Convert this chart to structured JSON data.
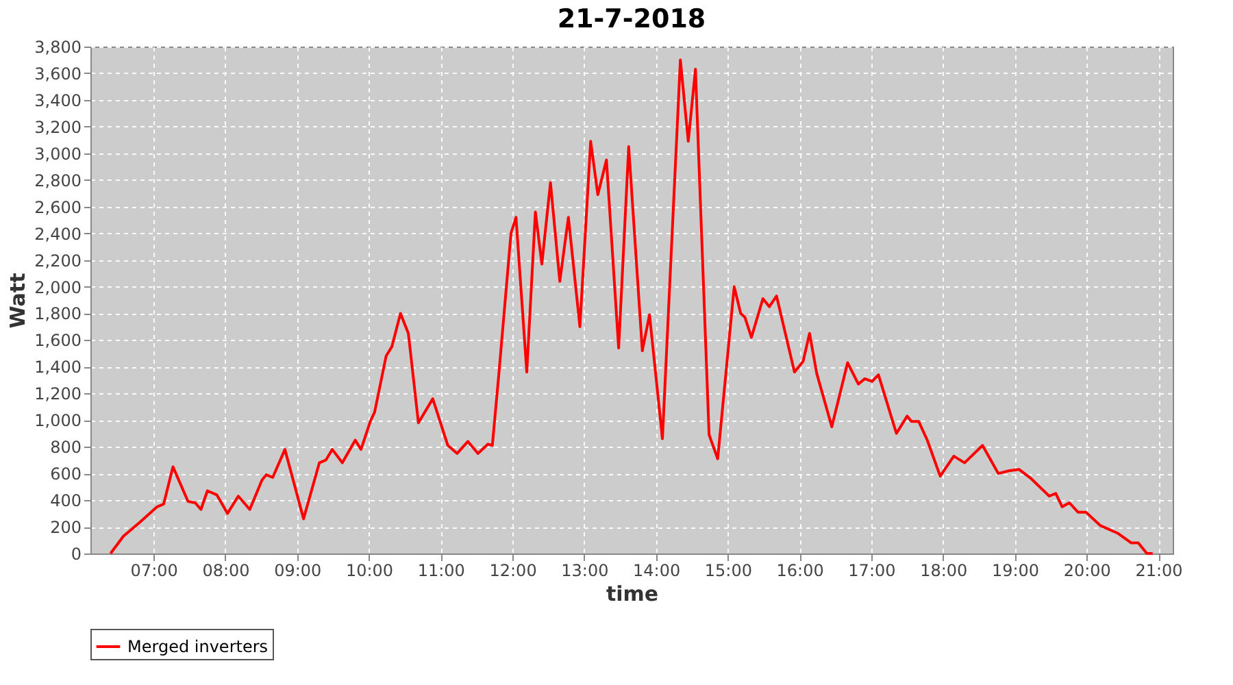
{
  "chart_data": {
    "type": "line",
    "title": "21-7-2018",
    "xlabel": "time",
    "ylabel": "Watt",
    "xlim": [
      6.12,
      21.2
    ],
    "xticks": [
      {
        "value": 7,
        "label": "07:00"
      },
      {
        "value": 8,
        "label": "08:00"
      },
      {
        "value": 9,
        "label": "09:00"
      },
      {
        "value": 10,
        "label": "10:00"
      },
      {
        "value": 11,
        "label": "11:00"
      },
      {
        "value": 12,
        "label": "12:00"
      },
      {
        "value": 13,
        "label": "13:00"
      },
      {
        "value": 14,
        "label": "14:00"
      },
      {
        "value": 15,
        "label": "15:00"
      },
      {
        "value": 16,
        "label": "16:00"
      },
      {
        "value": 17,
        "label": "17:00"
      },
      {
        "value": 18,
        "label": "18:00"
      },
      {
        "value": 19,
        "label": "19:00"
      },
      {
        "value": 20,
        "label": "20:00"
      },
      {
        "value": 21,
        "label": "21:00"
      }
    ],
    "ylim": [
      0,
      3800
    ],
    "yticks": [
      0,
      200,
      400,
      600,
      800,
      {
        "value": 1000,
        "label": "1,000"
      },
      {
        "value": 1200,
        "label": "1,200"
      },
      {
        "value": 1400,
        "label": "1,400"
      },
      {
        "value": 1600,
        "label": "1,600"
      },
      {
        "value": 1800,
        "label": "1,800"
      },
      {
        "value": 2000,
        "label": "2,000"
      },
      {
        "value": 2200,
        "label": "2,200"
      },
      {
        "value": 2400,
        "label": "2,400"
      },
      {
        "value": 2600,
        "label": "2,600"
      },
      {
        "value": 2800,
        "label": "2,800"
      },
      {
        "value": 3000,
        "label": "3,000"
      },
      {
        "value": 3200,
        "label": "3,200"
      },
      {
        "value": 3400,
        "label": "3,400"
      },
      {
        "value": 3600,
        "label": "3,600"
      },
      {
        "value": 3800,
        "label": "3,800"
      }
    ],
    "grid": true,
    "legend": "bottom",
    "marker": "none",
    "line_style": "solid",
    "series": [
      {
        "name": "Merged inverters",
        "color": "#ff0000",
        "x": [
          6.4,
          6.58,
          6.8,
          7.05,
          7.14,
          7.27,
          7.48,
          7.58,
          7.66,
          7.75,
          7.88,
          8.03,
          8.18,
          8.34,
          8.51,
          8.57,
          8.66,
          8.83,
          9.09,
          9.31,
          9.4,
          9.49,
          9.63,
          9.81,
          9.89,
          10.02,
          10.08,
          10.24,
          10.32,
          10.44,
          10.55,
          10.69,
          10.89,
          11.1,
          11.23,
          11.38,
          11.52,
          11.66,
          11.72,
          11.81,
          11.98,
          12.05,
          12.2,
          12.32,
          12.41,
          12.53,
          12.66,
          12.78,
          12.94,
          13.09,
          13.19,
          13.31,
          13.48,
          13.62,
          13.81,
          13.91,
          14.09,
          14.34,
          14.45,
          14.55,
          14.74,
          14.86,
          15.09,
          15.18,
          15.24,
          15.33,
          15.49,
          15.58,
          15.68,
          15.93,
          16.05,
          16.14,
          16.24,
          16.45,
          16.67,
          16.82,
          16.91,
          17.01,
          17.1,
          17.35,
          17.5,
          17.56,
          17.66,
          17.78,
          17.96,
          18.15,
          18.3,
          18.55,
          18.77,
          18.92,
          19.06,
          19.23,
          19.48,
          19.57,
          19.66,
          19.76,
          19.88,
          19.99,
          20.19,
          20.44,
          20.62,
          20.72,
          20.84,
          20.92
        ],
        "values": [
          0,
          130,
          230,
          350,
          370,
          650,
          390,
          380,
          330,
          470,
          440,
          300,
          430,
          330,
          550,
          590,
          570,
          780,
          260,
          680,
          700,
          780,
          680,
          850,
          780,
          990,
          1060,
          1480,
          1550,
          1800,
          1650,
          980,
          1160,
          810,
          750,
          840,
          750,
          820,
          810,
          1340,
          2400,
          2520,
          1360,
          2560,
          2170,
          2780,
          2040,
          2520,
          1700,
          3090,
          2690,
          2950,
          1540,
          3050,
          1520,
          1790,
          860,
          3700,
          3090,
          3630,
          890,
          710,
          2000,
          1800,
          1770,
          1620,
          1910,
          1850,
          1930,
          1360,
          1440,
          1650,
          1350,
          950,
          1430,
          1270,
          1310,
          1290,
          1340,
          900,
          1030,
          990,
          990,
          850,
          580,
          730,
          680,
          810,
          600,
          620,
          630,
          560,
          430,
          450,
          350,
          380,
          310,
          310,
          210,
          150,
          80,
          80,
          0,
          0
        ]
      }
    ]
  }
}
